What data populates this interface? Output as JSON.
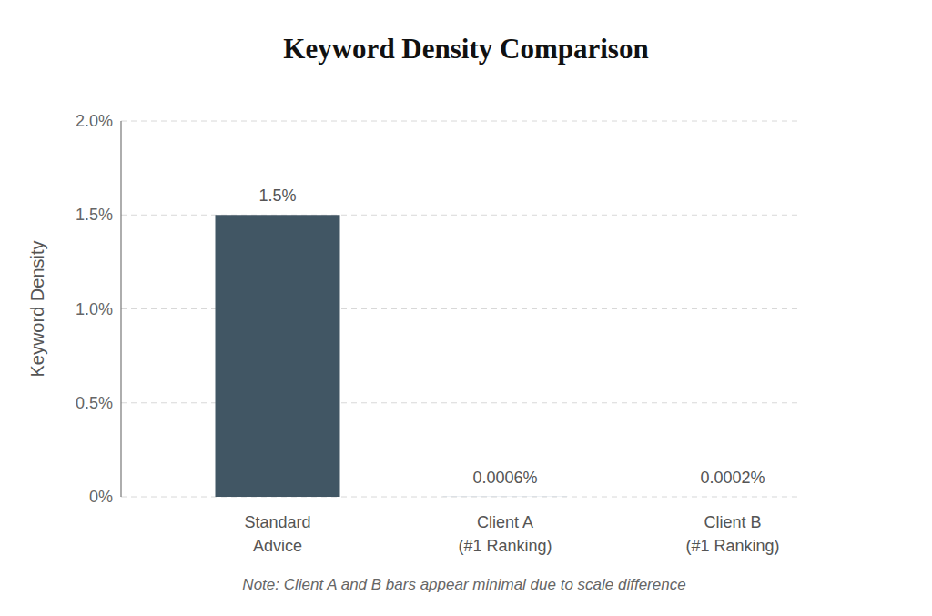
{
  "chart_data": {
    "type": "bar",
    "title": "Keyword Density Comparison",
    "y_label": "Keyword Density",
    "categories": [
      "Standard\nAdvice",
      "Client A\n(#1 Ranking)",
      "Client B\n(#1 Ranking)"
    ],
    "values": [
      1.5,
      0.0006,
      0.0002
    ],
    "value_labels": [
      "1.5%",
      "0.0006%",
      "0.0002%"
    ],
    "colors": [
      "#415664",
      "#6a8caf",
      "#a9c1d9"
    ],
    "ylim": [
      0,
      2
    ],
    "yticks": [
      {
        "value": 0,
        "label": "0%"
      },
      {
        "value": 0.5,
        "label": "0.5%"
      },
      {
        "value": 1,
        "label": "1.0%"
      },
      {
        "value": 1.5,
        "label": "1.5%"
      },
      {
        "value": 2,
        "label": "2.0%"
      }
    ],
    "grid": true,
    "data_labels": true,
    "annotation": "Note: Client A and B bars appear minimal due to scale difference"
  }
}
